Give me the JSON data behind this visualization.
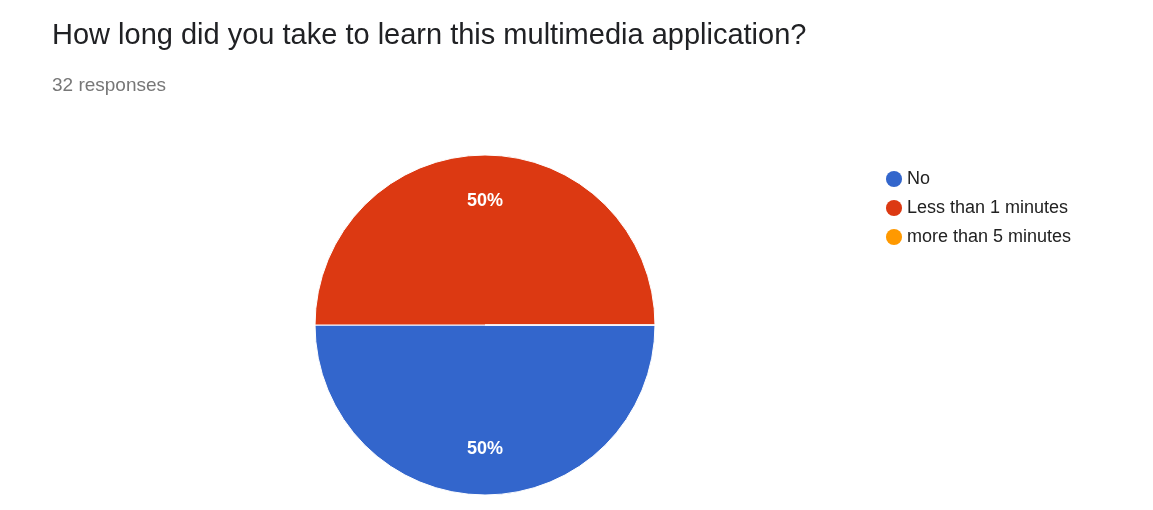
{
  "chart_data": {
    "type": "pie",
    "title": "How long did you take to learn this multimedia application?",
    "subtitle": "32 responses",
    "categories": [
      "No",
      "Less than 1 minutes",
      "more than 5 minutes"
    ],
    "values": [
      50,
      50,
      0
    ],
    "colors": [
      "#3366cc",
      "#dc3912",
      "#ff9900"
    ],
    "value_labels": [
      "50%",
      "50%",
      null
    ],
    "legend": "right"
  }
}
